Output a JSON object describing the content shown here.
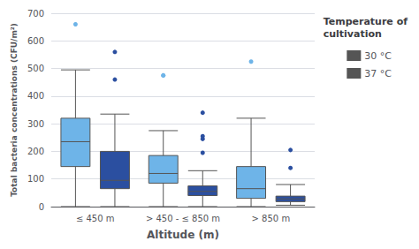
{
  "chart_data": {
    "type": "box",
    "xlabel": "Altitude (m)",
    "ylabel": "Total bacteria concentrations (CFU/m²)",
    "categories": [
      "≤ 450 m",
      "> 450 - ≤ 850 m",
      "> 850 m"
    ],
    "series": [
      {
        "name": "30 °C",
        "color": "#6EB4E8",
        "values": [
          [
            0,
            145,
            235,
            320,
            495
          ],
          [
            0,
            85,
            120,
            185,
            275
          ],
          [
            0,
            30,
            65,
            145,
            320
          ]
        ],
        "fliers": [
          [
            660
          ],
          [
            475,
            475
          ],
          [
            525
          ]
        ]
      },
      {
        "name": "37 °C",
        "color": "#2B4FA0",
        "values": [
          [
            0,
            65,
            95,
            200,
            335
          ],
          [
            0,
            40,
            55,
            75,
            130
          ],
          [
            5,
            18,
            28,
            38,
            80
          ]
        ],
        "fliers": [
          [
            560,
            460
          ],
          [
            340,
            255,
            245,
            195
          ],
          [
            205,
            140
          ]
        ]
      }
    ],
    "legend_title": "Temperature of\ncultivation",
    "legend": "upper right",
    "ylim": [
      0,
      700
    ],
    "yticks": [
      0,
      100,
      200,
      300,
      400,
      500,
      600,
      700
    ],
    "grid": true
  }
}
